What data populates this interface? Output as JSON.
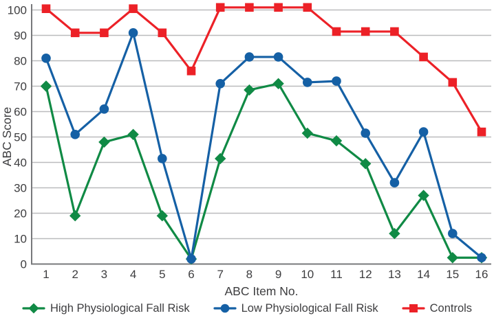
{
  "chart_data": {
    "type": "line",
    "title": "",
    "xlabel": "ABC Item No.",
    "ylabel": "ABC Score",
    "x": [
      1,
      2,
      3,
      4,
      5,
      6,
      7,
      8,
      9,
      10,
      11,
      12,
      13,
      14,
      15,
      16
    ],
    "xticks": [
      "1",
      "2",
      "3",
      "4",
      "5",
      "6",
      "7",
      "8",
      "9",
      "10",
      "11",
      "12",
      "13",
      "14",
      "15",
      "16"
    ],
    "yticks": [
      0,
      10,
      20,
      30,
      40,
      50,
      60,
      70,
      80,
      90,
      100
    ],
    "ylim": [
      0,
      100
    ],
    "grid": "horizontal",
    "legend_position": "bottom",
    "series": [
      {
        "name": "High Physiological Fall Risk",
        "marker": "diamond",
        "color": "#108a45",
        "values": [
          70,
          19,
          48,
          51,
          19,
          2,
          41.5,
          68.5,
          71,
          51.5,
          48.5,
          39.5,
          12,
          27,
          2.5,
          2.5
        ]
      },
      {
        "name": "Low Physiological Fall Risk",
        "marker": "circle",
        "color": "#1560a5",
        "values": [
          81,
          51,
          61,
          91,
          41.5,
          2,
          71,
          81.5,
          81.5,
          71.5,
          72,
          51.5,
          32,
          52,
          12,
          2.5
        ]
      },
      {
        "name": "Controls",
        "marker": "square",
        "color": "#ec2127",
        "values": [
          100.5,
          91,
          91,
          100.5,
          91,
          76,
          101,
          101,
          101,
          101,
          91.5,
          91.5,
          91.5,
          81.5,
          71.5,
          52
        ]
      }
    ],
    "colors": {
      "gridline": "#babbbd",
      "axis": "#77787b",
      "text": "#3d3d3f"
    }
  }
}
